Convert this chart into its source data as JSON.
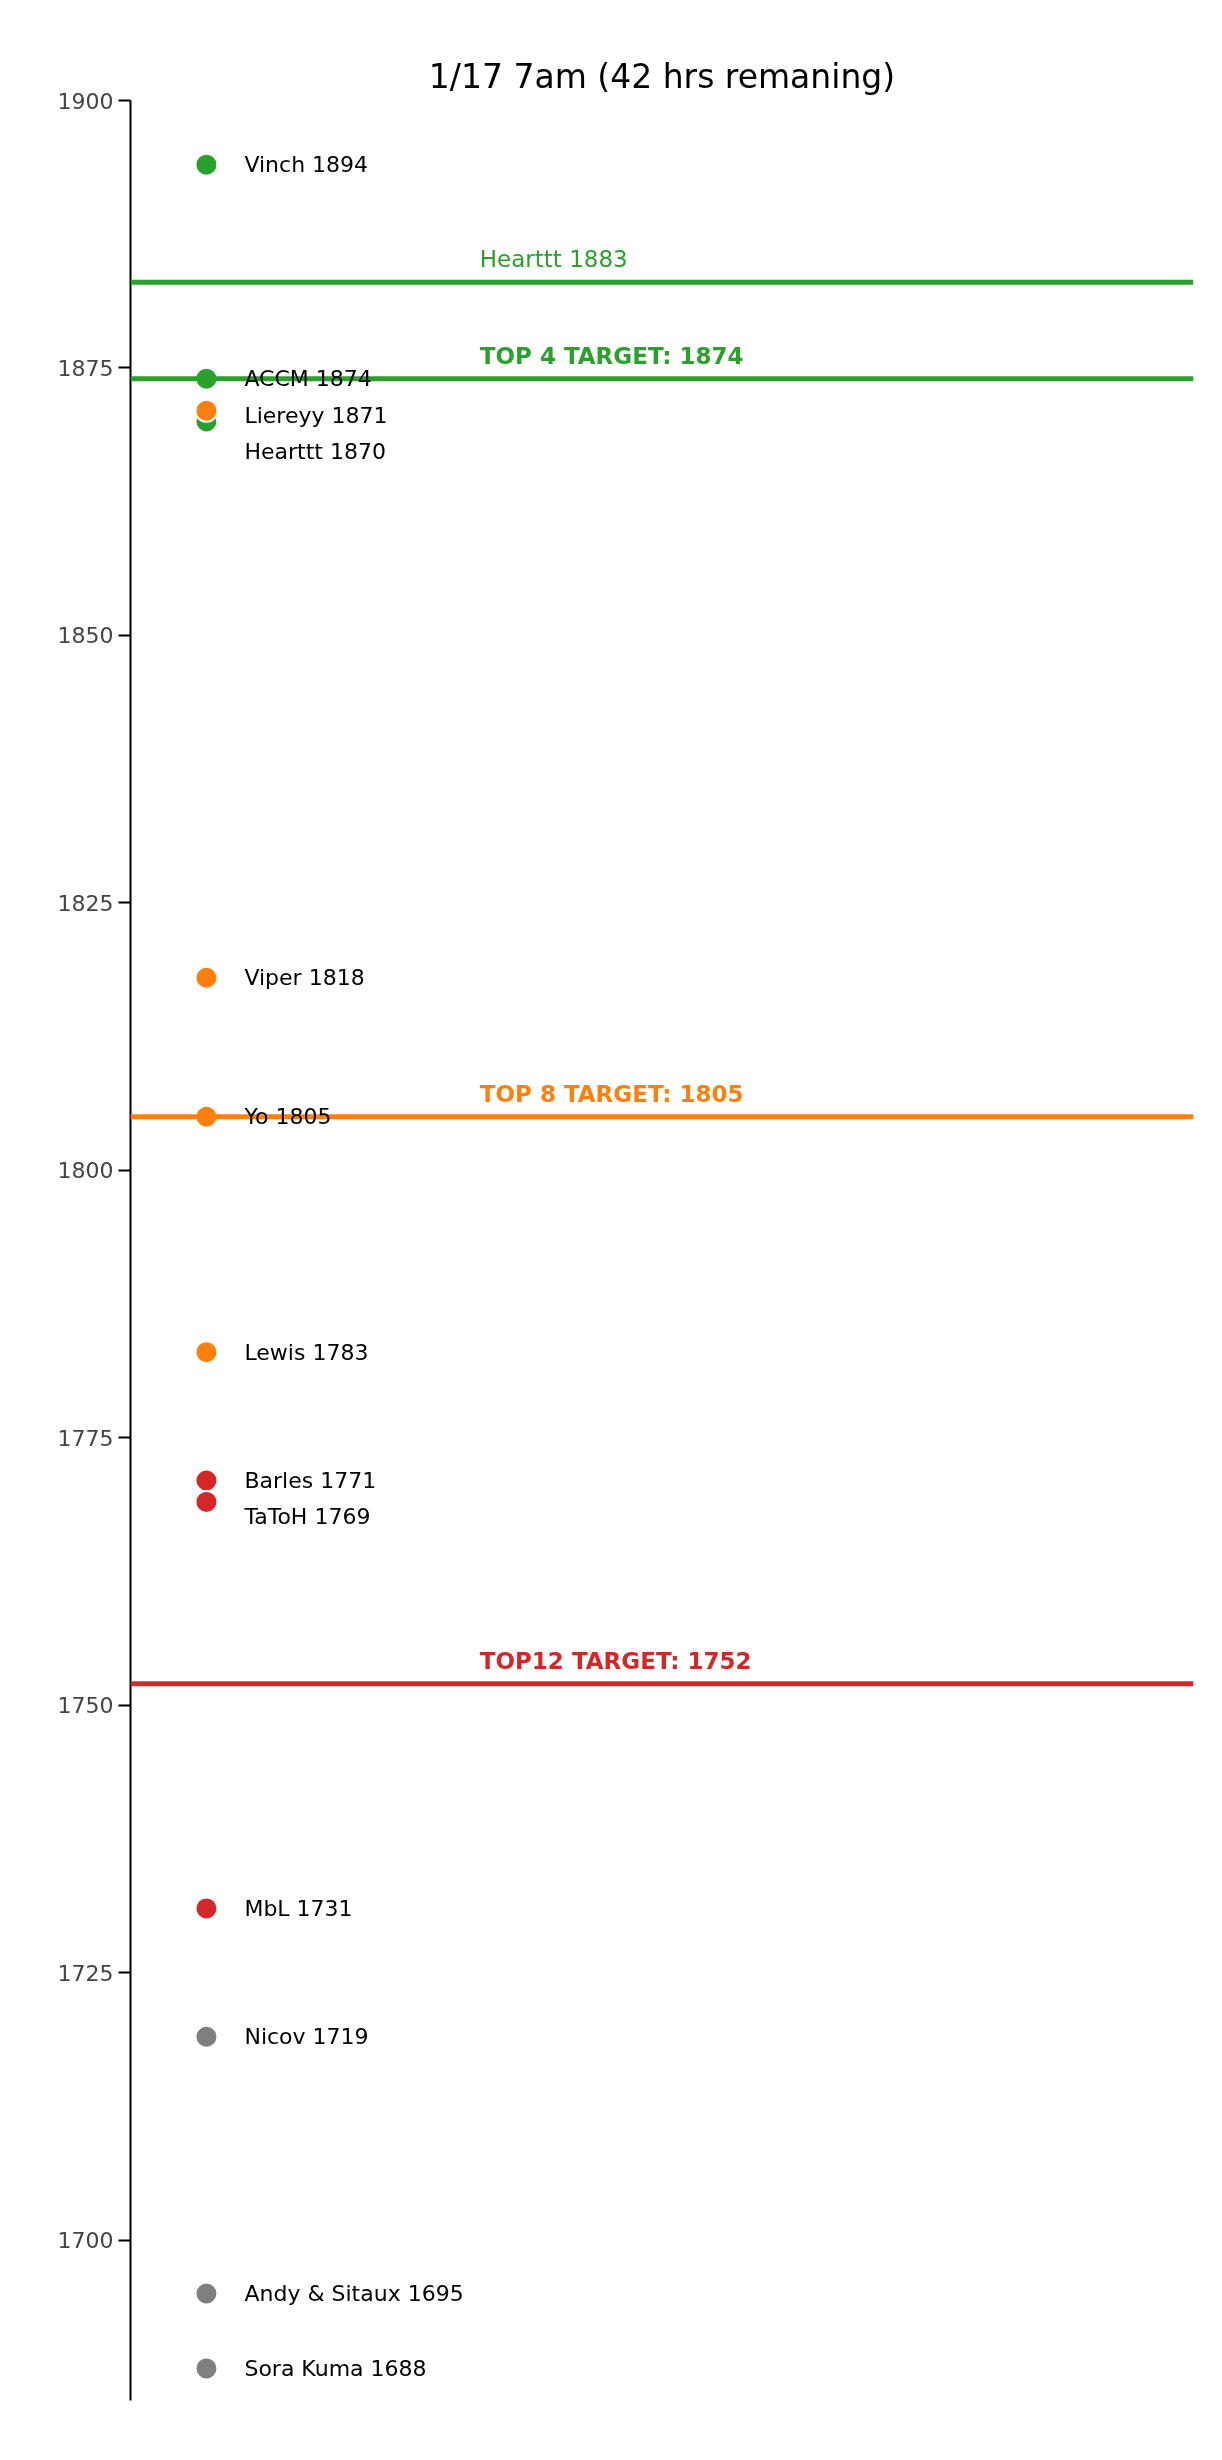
{
  "chart_data": {
    "type": "scatter",
    "title": "1/17 7am (42 hrs remaning)",
    "marker": "circle",
    "tick_labels": "y",
    "categories": [
      null,
      null,
      null,
      null,
      null,
      null,
      null
    ],
    "series": [
      {
        "name": "Vinch 1894",
        "color": "#2ca02c",
        "values": [
          1894,
          null,
          null,
          null,
          null,
          null,
          null
        ]
      },
      {
        "name": "Hearttt 1870",
        "color": "#2ca02c",
        "values": [
          1870,
          null,
          null,
          null,
          null,
          null,
          null
        ]
      },
      {
        "name": "Liereyy 1871",
        "color": "#ff7f0e",
        "values": [
          1871,
          null,
          null,
          null,
          null,
          null,
          null
        ]
      },
      {
        "name": "ACCM 1874",
        "color": "#2ca02c",
        "values": [
          1874,
          null,
          null,
          null,
          null,
          null,
          null
        ]
      },
      {
        "name": "Viper 1818",
        "color": "#ff7f0e",
        "values": [
          1818,
          null,
          null,
          null,
          null,
          null,
          null
        ]
      },
      {
        "name": "Yo 1805",
        "color": "#ff7f0e",
        "values": [
          1805,
          null,
          null,
          null,
          null,
          null,
          null
        ]
      },
      {
        "name": "Lewis 1783",
        "color": "#ff7f0e",
        "values": [
          1783,
          null,
          null,
          null,
          null,
          null,
          null
        ]
      },
      {
        "name": "Barles 1771",
        "color": "#d62728",
        "values": [
          1771,
          null,
          null,
          null,
          null,
          null,
          null
        ]
      },
      {
        "name": "TaToH 1769",
        "color": "#d62728",
        "values": [
          1769,
          null,
          null,
          null,
          null,
          null,
          null
        ]
      },
      {
        "name": "MbL 1731",
        "color": "#d62728",
        "values": [
          1731,
          null,
          null,
          null,
          null,
          null,
          null
        ]
      },
      {
        "name": "Nicov 1719",
        "color": "#7f7f7f",
        "values": [
          1719,
          null,
          null,
          null,
          null,
          null,
          null
        ]
      },
      {
        "name": "Andy & Sitaux 1695",
        "color": "#7f7f7f",
        "values": [
          1695,
          null,
          null,
          null,
          null,
          null,
          null
        ]
      },
      {
        "name": "Sora Kuma 1688",
        "color": "#7f7f7f",
        "values": [
          1688,
          null,
          null,
          null,
          null,
          null,
          null
        ]
      }
    ],
    "ylim": [
      1685,
      1900
    ],
    "yticks": [
      1700,
      1725,
      1750,
      1775,
      1800,
      1825,
      1850,
      1875,
      1900
    ],
    "ref_lines": [
      {
        "axis": "y",
        "value": 1883,
        "label": "Hearttt 1883",
        "color": "#2ca02c"
      },
      {
        "axis": "y",
        "value": 1874,
        "label": "TOP 4 TARGET: 1874",
        "color": "#2ca02c"
      },
      {
        "axis": "y",
        "value": 1805,
        "label": "TOP 8 TARGET: 1805",
        "color": "#ff7f0e"
      },
      {
        "axis": "y",
        "value": 1752,
        "label": "TOP12 TARGET: 1752",
        "color": "#d62728"
      }
    ]
  }
}
